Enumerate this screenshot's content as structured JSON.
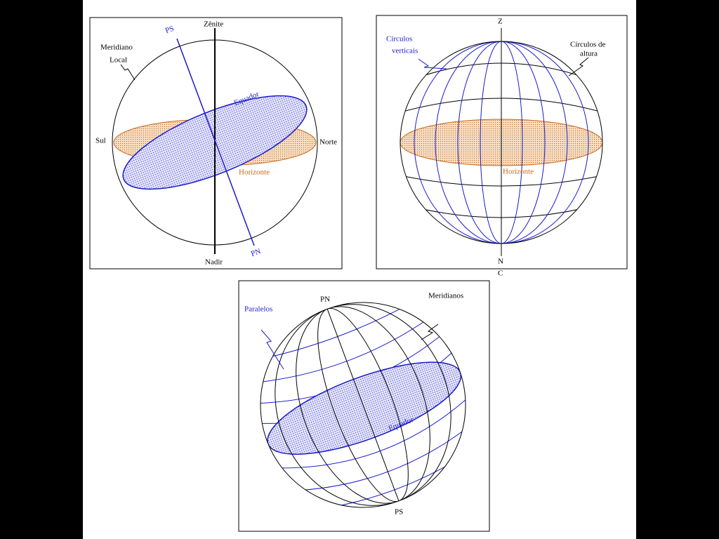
{
  "panel_horizon": {
    "zenith": "Zênite",
    "south_pole": "PS",
    "meridian": [
      "Meridiano",
      "Local"
    ],
    "equator": "Equador",
    "south": "Sul",
    "north": "Norte",
    "horizon": "Horizonte",
    "nadir": "Nadir",
    "north_pole": "PN"
  },
  "panel_vertical": {
    "zenith": "Z",
    "vertical_circles": [
      "Círculos",
      "verticais"
    ],
    "altitude_circles": [
      "Círculos de",
      "altura"
    ],
    "horizon": "Horizonte",
    "nadir": [
      "N",
      "C"
    ]
  },
  "panel_globe": {
    "north_pole": "PN",
    "meridians": "Meridianos",
    "parallels": "Paralelos",
    "equator": "Equador",
    "south_pole": "PS"
  }
}
